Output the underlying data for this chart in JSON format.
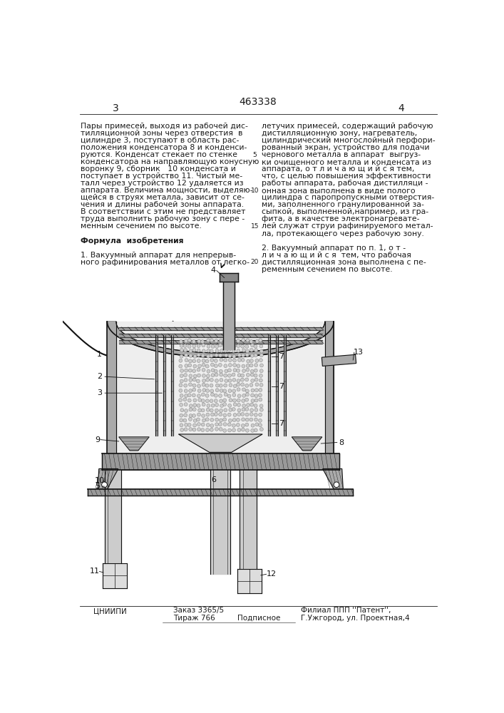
{
  "patent_number": "463338",
  "page_left": "3",
  "page_right": "4",
  "bg_color": "#ffffff",
  "text_color": "#1a1a1a",
  "left_column_text": [
    "Пары примесей, выходя из рабочей дис-",
    "тилляционной зоны через отверстия  в",
    "цилиндре 3, поступают в область рас-",
    "положения конденсатора 8 и конденси-",
    "руются. Конденсат стекает по стенке",
    "конденсатора на направляющую конусную",
    "воронку 9, сборник   10 конденсата и",
    "поступает в устройство 11. Чистый ме-",
    "талл через устройство 12 удаляется из",
    "аппарата. Величина мощности, выделяю-",
    "щейся в струях металла, зависит от се-",
    "чения и длины рабочей зоны аппарата.",
    "В соответствии с этим не представляет",
    "труда выполнить рабочую зону с пере -",
    "менным сечением по высоте.",
    "",
    "Формула  изобретения",
    "",
    "1. Вакуумный аппарат для непрерыв-",
    "ного рафинирования металлов от легко-"
  ],
  "right_column_text": [
    "летучих примесей, содержащий рабочую",
    "дистилляционную зону, нагреватель,",
    "цилиндрический многослойный перфори-",
    "рованный экран, устройство для подачи",
    "чернового металла в аппарат  выгруз-",
    "ки очищенного металла и конденсата из",
    "аппарата, о т л и ч а ю щ и й с я тем,",
    "что, с целью повышения эффективности",
    "работы аппарата, рабочая дистилляци -",
    "онная зона выполнена в виде полого",
    "цилиндра с паропропускными отверстия-",
    "ми, заполненного гранулированной за-",
    "сыпкой, выполненной,например, из гра-",
    "фита, а в качестве электронагревате-",
    "лей служат струи рафинируемого метал-",
    "ла, протекающего через рабочую зону.",
    "",
    "2. Вакуумный аппарат по п. 1, о т -",
    "л и ч а ю щ и й с я  тем, что рабочая",
    "дистилляционная зона выполнена с пе-",
    "ременным сечением по высоте."
  ],
  "footer_left": "ЦНИИПИ",
  "footer_order": "Заказ 3365/5",
  "footer_tiraz": "Тираж 766",
  "footer_podp": "Подписное",
  "footer_filial": "Филиал ППП ''Патент'',",
  "footer_addr": "Г.Ужгород, ул. Проектная,4"
}
